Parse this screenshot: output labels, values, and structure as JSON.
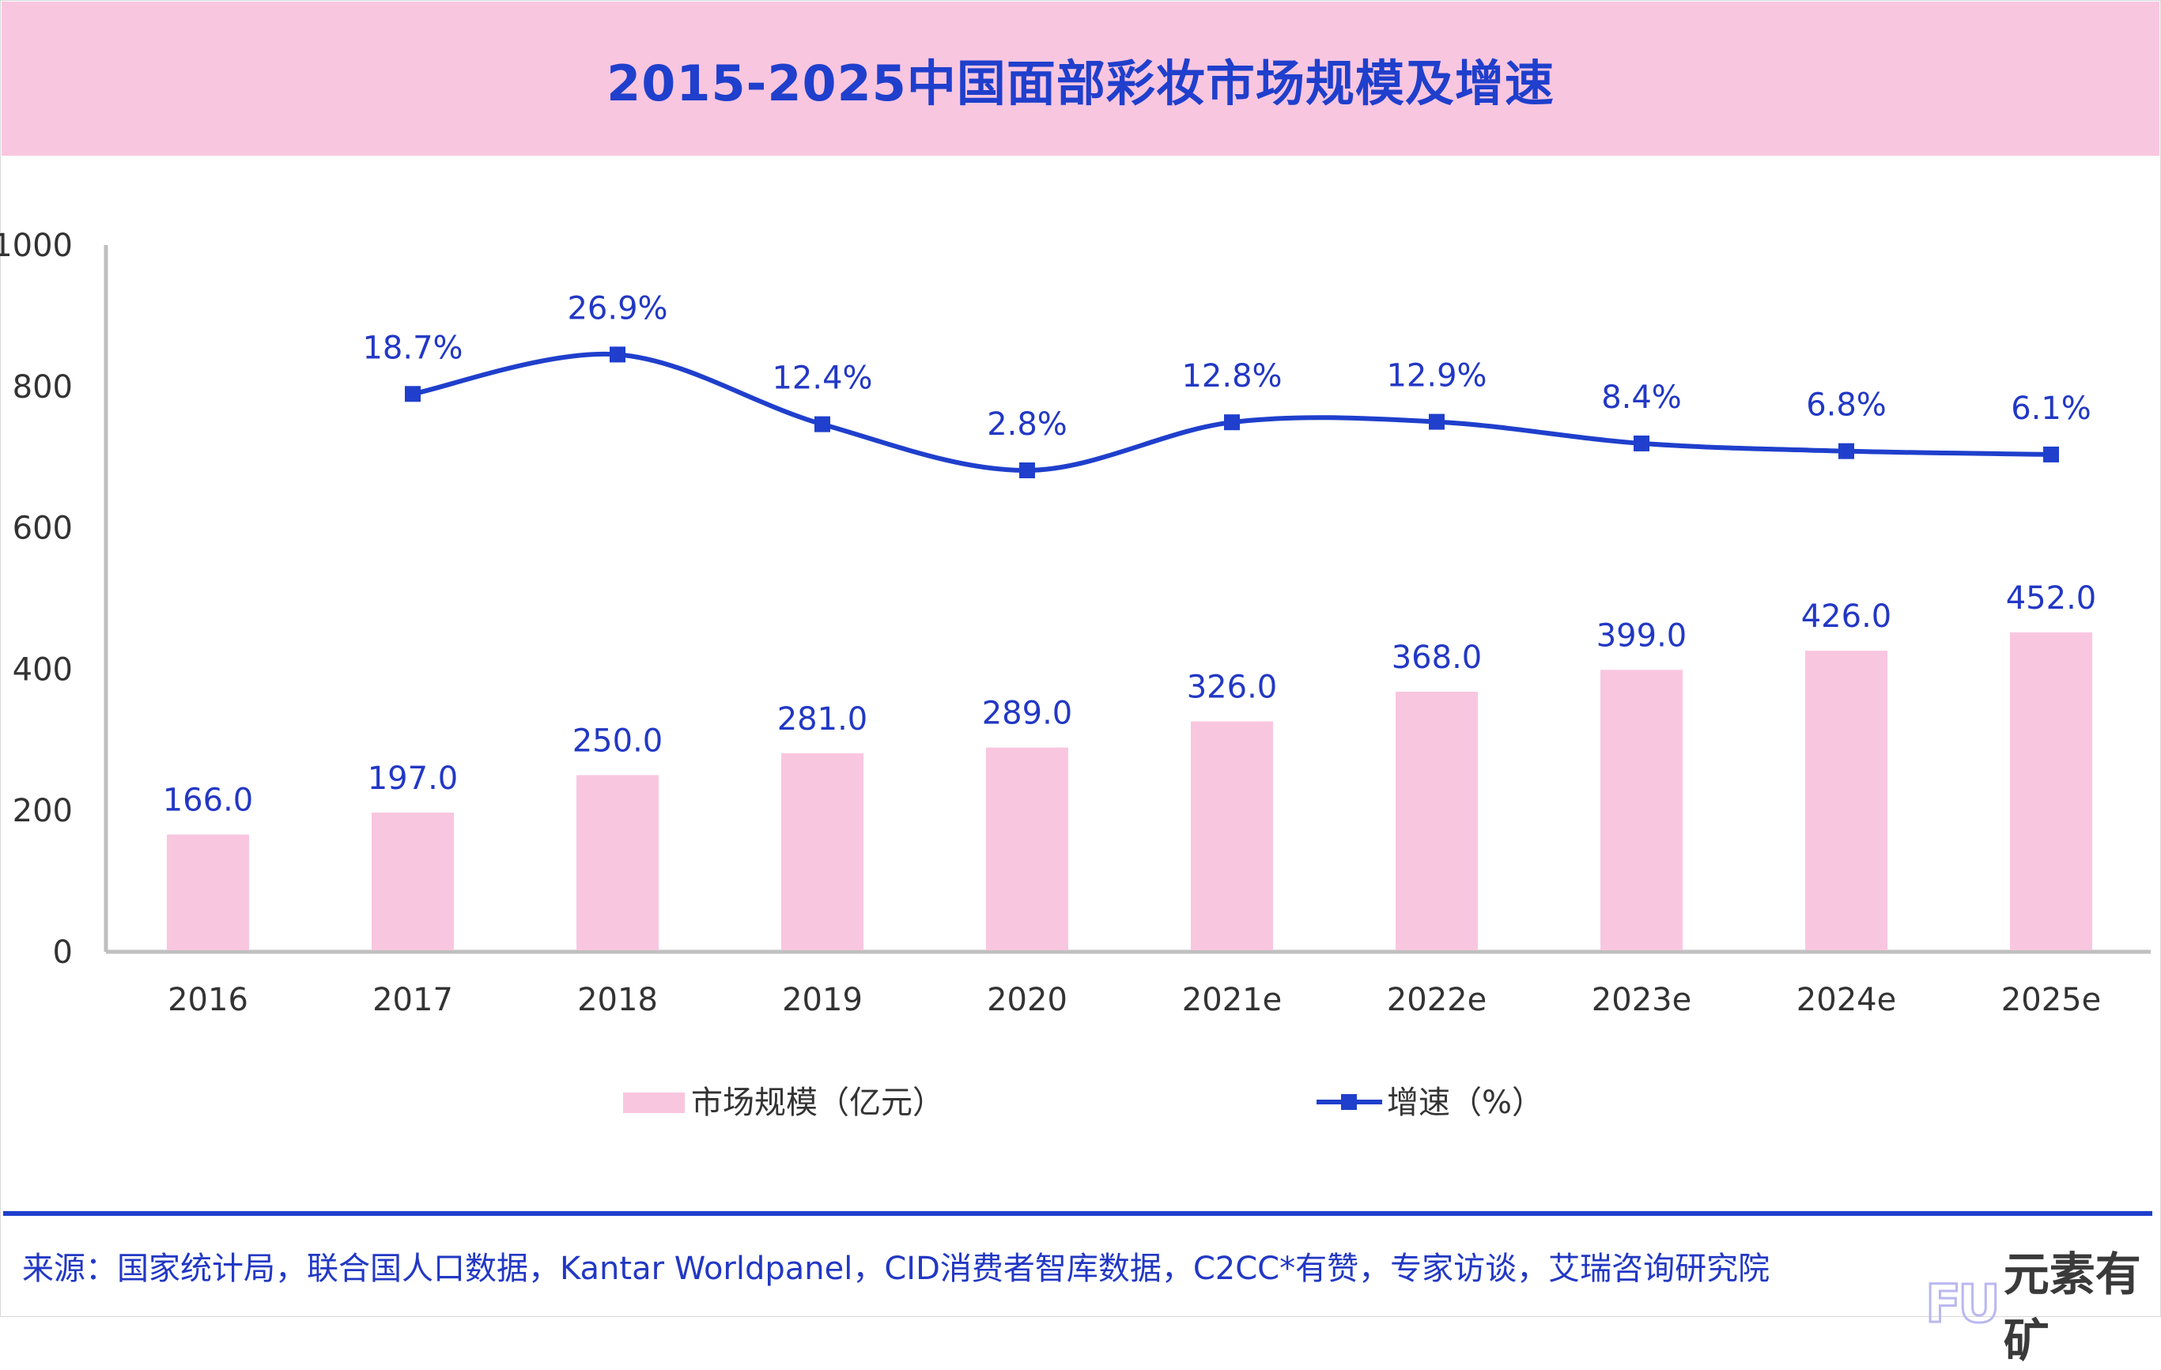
{
  "title": "2015-2025中国面部彩妆市场规模及增速",
  "chart_data": {
    "type": "bar+line",
    "title": "2015-2025中国面部彩妆市场规模及增速",
    "categories": [
      "2016",
      "2017",
      "2018",
      "2019",
      "2020",
      "2021e",
      "2022e",
      "2023e",
      "2024e",
      "2025e"
    ],
    "y_ticks": [
      "0",
      "200",
      "400",
      "600",
      "800",
      "1000"
    ],
    "ylim": [
      0,
      1000
    ],
    "grid": false,
    "legend_placement": "bottom",
    "series": [
      {
        "name": "市场规模（亿元）",
        "type": "bar",
        "color": "#f9c6e0",
        "values": [
          166.0,
          197.0,
          250.0,
          281.0,
          289.0,
          326.0,
          368.0,
          399.0,
          426.0,
          452.0
        ],
        "labels": [
          "166.0",
          "197.0",
          "250.0",
          "281.0",
          "289.0",
          "326.0",
          "368.0",
          "399.0",
          "426.0",
          "452.0"
        ]
      },
      {
        "name": "增速（%）",
        "type": "line",
        "color": "#1f3fcc",
        "smooth": true,
        "axis": "secondary-hidden",
        "values": [
          null,
          18.7,
          26.9,
          12.4,
          2.8,
          12.8,
          12.9,
          8.4,
          6.8,
          6.1
        ],
        "labels": [
          "",
          "18.7%",
          "26.9%",
          "12.4%",
          "2.8%",
          "12.8%",
          "12.9%",
          "8.4%",
          "6.8%",
          "6.1%"
        ]
      }
    ]
  },
  "source": "来源：国家统计局，联合国人口数据，Kantar Worldpanel，CID消费者智库数据，C2CC*有赞，专家访谈，艾瑞咨询研究院",
  "logo": {
    "mark": "FU",
    "text": "元素有矿"
  }
}
